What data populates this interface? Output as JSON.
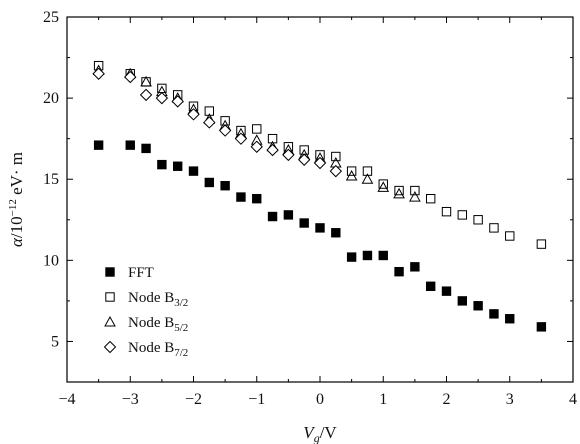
{
  "chart_data": {
    "type": "scatter",
    "title": "",
    "xlabel": "Vg/V",
    "ylabel": "α/10^-12 eV·m",
    "xlim": [
      -4,
      4
    ],
    "ylim": [
      2.5,
      25
    ],
    "xticks": [
      -4,
      -3,
      -2,
      -1,
      0,
      1,
      2,
      3,
      4
    ],
    "yticks": [
      5,
      10,
      15,
      20,
      25
    ],
    "tick_labels_x": [
      "−4",
      "−3",
      "−2",
      "−1",
      "0",
      "1",
      "2",
      "3",
      "4"
    ],
    "tick_labels_y": [
      "5",
      "10",
      "15",
      "20",
      "25"
    ],
    "legend_position": "lower-left",
    "series": [
      {
        "name": "FFT",
        "marker": "filled-square",
        "color": "#000000",
        "x": [
          -3.5,
          -3.0,
          -2.75,
          -2.5,
          -2.25,
          -2.0,
          -1.75,
          -1.5,
          -1.25,
          -1.0,
          -0.75,
          -0.5,
          -0.25,
          0.0,
          0.25,
          0.5,
          0.75,
          1.0,
          1.25,
          1.5,
          1.75,
          2.0,
          2.25,
          2.5,
          2.75,
          3.0,
          3.5
        ],
        "y": [
          17.1,
          17.1,
          16.9,
          15.9,
          15.8,
          15.5,
          14.8,
          14.6,
          13.9,
          13.8,
          12.7,
          12.8,
          12.3,
          12.0,
          11.7,
          10.2,
          10.3,
          10.3,
          9.3,
          9.6,
          8.4,
          8.1,
          7.5,
          7.2,
          6.7,
          6.4,
          5.9
        ]
      },
      {
        "name": "Node B3/2",
        "name_main": "Node B",
        "name_sub": "3/2",
        "marker": "open-square",
        "color": "#000000",
        "x": [
          -3.5,
          -3.0,
          -2.75,
          -2.5,
          -2.25,
          -2.0,
          -1.75,
          -1.5,
          -1.25,
          -1.0,
          -0.75,
          -0.5,
          -0.25,
          0.0,
          0.25,
          0.5,
          0.75,
          1.0,
          1.25,
          1.5,
          1.75,
          2.0,
          2.25,
          2.5,
          2.75,
          3.0,
          3.5
        ],
        "y": [
          22.0,
          21.5,
          21.0,
          20.6,
          20.2,
          19.5,
          19.2,
          18.6,
          18.0,
          18.1,
          17.5,
          17.0,
          16.8,
          16.5,
          16.4,
          15.5,
          15.5,
          14.7,
          14.3,
          14.3,
          13.8,
          13.0,
          12.8,
          12.5,
          12.0,
          11.5,
          11.0
        ]
      },
      {
        "name": "Node B5/2",
        "name_main": "Node B",
        "name_sub": "5/2",
        "marker": "open-triangle",
        "color": "#000000",
        "x": [
          -3.5,
          -3.0,
          -2.75,
          -2.5,
          -2.25,
          -2.0,
          -1.75,
          -1.5,
          -1.25,
          -1.0,
          -0.75,
          -0.5,
          -0.25,
          0.0,
          0.25,
          0.5,
          0.75,
          1.0,
          1.25,
          1.5
        ],
        "y": [
          21.7,
          21.5,
          21.0,
          20.4,
          20.0,
          19.3,
          18.7,
          18.3,
          17.8,
          17.4,
          17.0,
          16.8,
          16.5,
          16.3,
          16.0,
          15.2,
          15.0,
          14.5,
          14.1,
          13.9
        ]
      },
      {
        "name": "Node B7/2",
        "name_main": "Node B",
        "name_sub": "7/2",
        "marker": "open-diamond",
        "color": "#000000",
        "x": [
          -3.5,
          -3.0,
          -2.75,
          -2.5,
          -2.25,
          -2.0,
          -1.75,
          -1.5,
          -1.25,
          -1.0,
          -0.75,
          -0.5,
          -0.25,
          0.0,
          0.25
        ],
        "y": [
          21.5,
          21.3,
          20.2,
          20.0,
          19.8,
          19.0,
          18.5,
          18.0,
          17.5,
          17.0,
          16.8,
          16.5,
          16.2,
          16.0,
          15.5
        ]
      }
    ]
  }
}
